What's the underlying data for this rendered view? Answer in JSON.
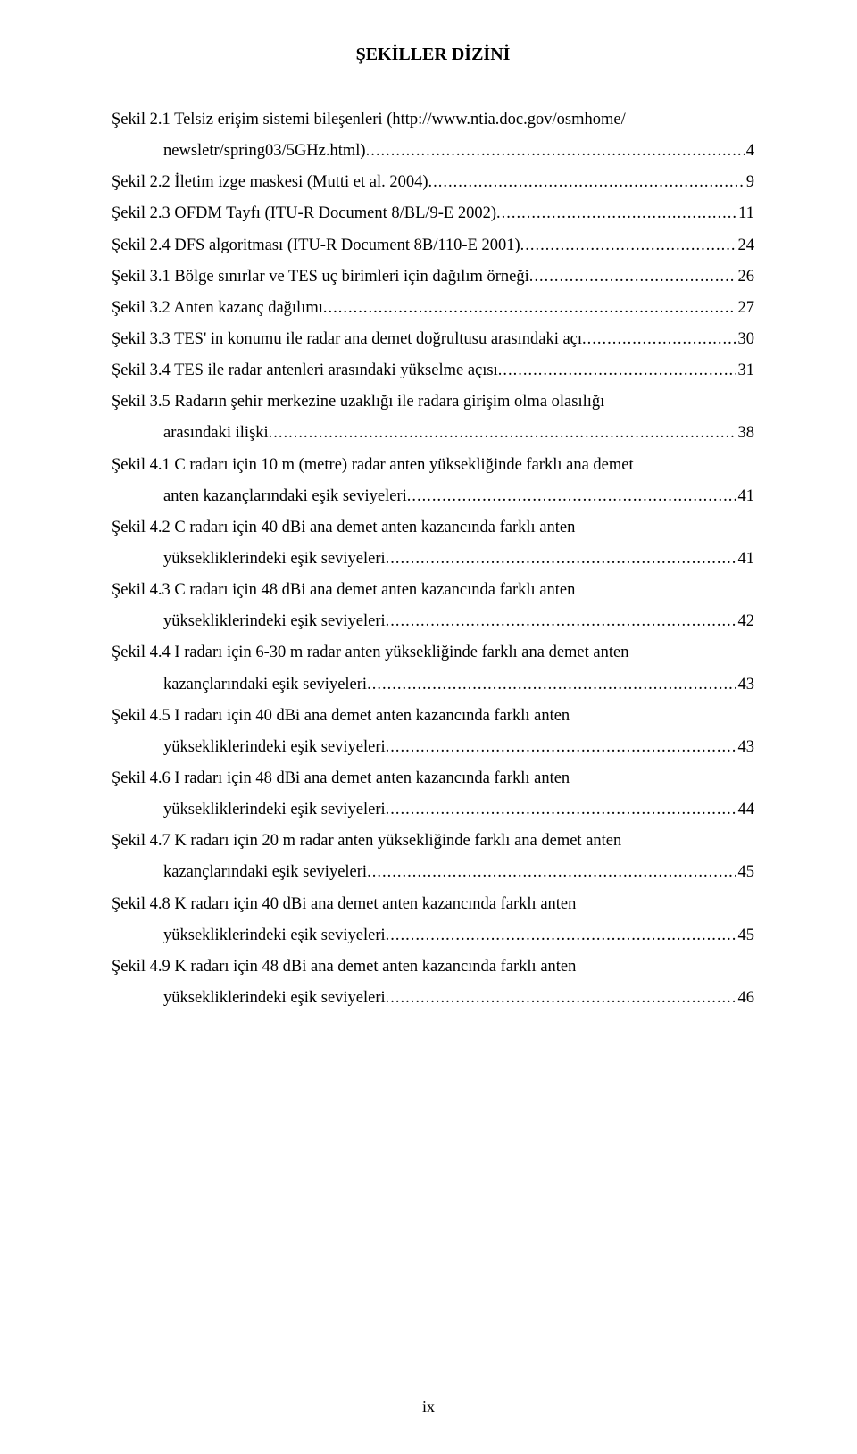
{
  "title": "ŞEKİLLER DİZİNİ",
  "entries": [
    {
      "lines": [
        "Şekil 2.1 Telsiz erişim sistemi bileşenleri (http://www.ntia.doc.gov/osmhome/"
      ],
      "tail_indented": true,
      "tail": "newsletr/spring03/5GHz.html)",
      "page": "4"
    },
    {
      "lines": [],
      "tail_indented": false,
      "tail": "Şekil 2.2 İletim izge maskesi (Mutti et al. 2004)",
      "page": "9"
    },
    {
      "lines": [],
      "tail_indented": false,
      "tail": "Şekil 2.3 OFDM Tayfı (ITU-R Document 8/BL/9-E 2002)",
      "page": "11"
    },
    {
      "lines": [],
      "tail_indented": false,
      "tail": "Şekil 2.4 DFS algoritması (ITU-R Document 8B/110-E 2001)",
      "page": "24"
    },
    {
      "lines": [],
      "tail_indented": false,
      "tail": "Şekil 3.1 Bölge sınırlar ve TES uç birimleri için dağılım örneği",
      "page": "26"
    },
    {
      "lines": [],
      "tail_indented": false,
      "tail": "Şekil 3.2 Anten kazanç dağılımı",
      "page": "27"
    },
    {
      "lines": [],
      "tail_indented": false,
      "tail": "Şekil 3.3 TES' in konumu ile radar ana demet doğrultusu arasındaki açı",
      "page": "30"
    },
    {
      "lines": [],
      "tail_indented": false,
      "tail": "Şekil 3.4 TES ile radar antenleri arasındaki yükselme açısı",
      "page": "31"
    },
    {
      "lines": [
        "Şekil 3.5 Radarın şehir merkezine uzaklığı ile radara girişim olma olasılığı"
      ],
      "tail_indented": true,
      "tail": "arasındaki ilişki",
      "page": "38"
    },
    {
      "lines": [
        "Şekil 4.1 C radarı için 10 m (metre) radar anten yüksekliğinde farklı ana demet"
      ],
      "tail_indented": true,
      "tail": "anten kazançlarındaki eşik seviyeleri",
      "page": "41"
    },
    {
      "lines": [
        "Şekil 4.2 C radarı için 40 dBi ana demet anten kazancında farklı anten"
      ],
      "tail_indented": true,
      "tail": "yüksekliklerindeki eşik seviyeleri",
      "page": "41"
    },
    {
      "lines": [
        "Şekil 4.3 C radarı için 48 dBi ana demet anten kazancında farklı anten"
      ],
      "tail_indented": true,
      "tail": "yüksekliklerindeki eşik seviyeleri",
      "page": "42"
    },
    {
      "lines": [
        "Şekil 4.4 I radarı için 6-30 m radar anten yüksekliğinde farklı ana demet anten"
      ],
      "tail_indented": true,
      "tail": "kazançlarındaki eşik seviyeleri",
      "page": "43"
    },
    {
      "lines": [
        "Şekil 4.5 I radarı için 40 dBi ana demet anten kazancında farklı anten"
      ],
      "tail_indented": true,
      "tail": "yüksekliklerindeki eşik seviyeleri",
      "page": "43"
    },
    {
      "lines": [
        "Şekil 4.6 I radarı için 48 dBi ana demet anten kazancında farklı anten"
      ],
      "tail_indented": true,
      "tail": "yüksekliklerindeki eşik seviyeleri",
      "page": "44"
    },
    {
      "lines": [
        "Şekil 4.7 K radarı için 20 m radar anten yüksekliğinde farklı ana demet anten"
      ],
      "tail_indented": true,
      "tail": "kazançlarındaki eşik seviyeleri",
      "page": "45"
    },
    {
      "lines": [
        "Şekil 4.8 K radarı için 40 dBi ana demet anten kazancında farklı anten"
      ],
      "tail_indented": true,
      "tail": "yüksekliklerindeki eşik seviyeleri",
      "page": "45"
    },
    {
      "lines": [
        "Şekil 4.9 K radarı için 48 dBi ana demet anten kazancında farklı anten"
      ],
      "tail_indented": true,
      "tail": "yüksekliklerindeki eşik seviyeleri",
      "page": "46"
    }
  ],
  "footer": "ix"
}
